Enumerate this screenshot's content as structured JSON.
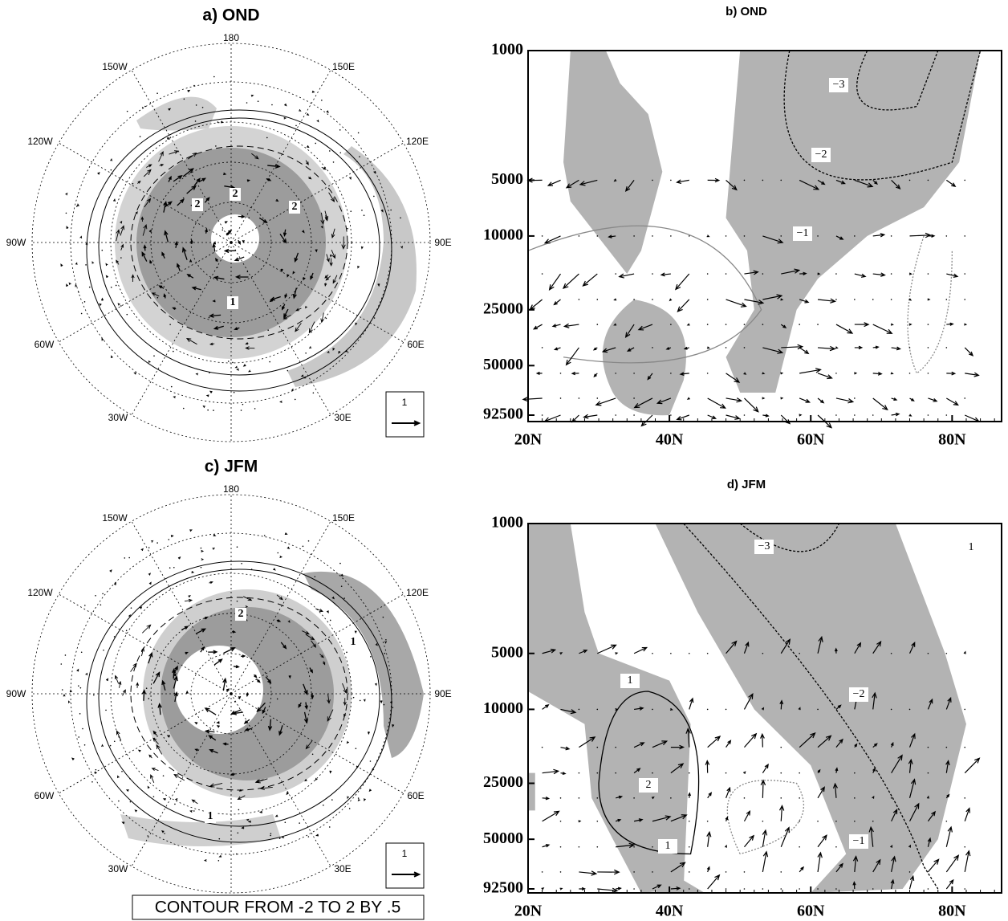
{
  "chart_data": [
    {
      "type": "map",
      "title": "a) OND",
      "lon_labels": [
        "180",
        "150W",
        "150E",
        "120W",
        "120E",
        "90W",
        "90E",
        "60W",
        "60E",
        "30W",
        "30E"
      ],
      "contour_labels": [
        "2",
        "2",
        "2",
        "1"
      ],
      "vector_key": "1"
    },
    {
      "type": "section",
      "title": "b) OND",
      "log_y": true,
      "ylim": [
        1000,
        92500
      ],
      "yticks": [
        1000,
        5000,
        10000,
        25000,
        50000,
        92500
      ],
      "xlim": [
        20,
        87
      ],
      "xticks": [
        {
          "value": 20,
          "label": "20N"
        },
        {
          "value": 40,
          "label": "40N"
        },
        {
          "value": 60,
          "label": "60N"
        },
        {
          "value": 80,
          "label": "80N"
        }
      ],
      "contour_labels": [
        "−3",
        "−2",
        "−1"
      ]
    },
    {
      "type": "map",
      "title": "c) JFM",
      "lon_labels": [
        "180",
        "150W",
        "150E",
        "120W",
        "120E",
        "90W",
        "90E",
        "60W",
        "60E",
        "30W",
        "30E"
      ],
      "contour_labels": [
        "2",
        "1",
        "1"
      ],
      "vector_key": "1"
    },
    {
      "type": "section",
      "title": "d) JFM",
      "log_y": true,
      "ylim": [
        1000,
        92500
      ],
      "yticks": [
        1000,
        5000,
        10000,
        25000,
        50000,
        92500
      ],
      "xlim": [
        20,
        87
      ],
      "xticks": [
        {
          "value": 20,
          "label": "20N"
        },
        {
          "value": 40,
          "label": "40N"
        },
        {
          "value": 60,
          "label": "60N"
        },
        {
          "value": 80,
          "label": "80N"
        }
      ],
      "contour_labels": [
        "−3",
        "−2",
        "−1",
        "1",
        "2",
        "1",
        "1"
      ]
    }
  ],
  "footer": "CONTOUR FROM -2 TO 2 BY .5"
}
